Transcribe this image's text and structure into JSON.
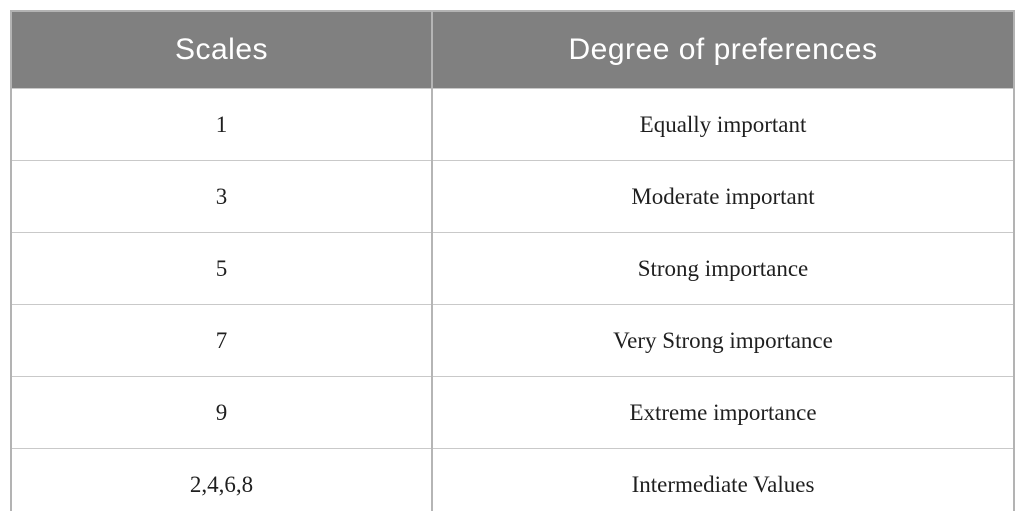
{
  "table": {
    "header": {
      "col1": "Scales",
      "col2": "Degree of preferences"
    },
    "rows": [
      {
        "scale": "1",
        "degree": "Equally important"
      },
      {
        "scale": "3",
        "degree": "Moderate important"
      },
      {
        "scale": "5",
        "degree": "Strong importance"
      },
      {
        "scale": "7",
        "degree": "Very Strong importance"
      },
      {
        "scale": "9",
        "degree": "Extreme importance"
      },
      {
        "scale": "2,4,6,8",
        "degree": "Intermediate Values"
      }
    ],
    "colors": {
      "header_bg": "#808080",
      "header_text": "#ffffff",
      "body_text": "#1f1f1f",
      "row_divider": "#c9c9c9",
      "column_divider": "#b5b5b5",
      "outer_border": "#b3b3b3"
    }
  }
}
